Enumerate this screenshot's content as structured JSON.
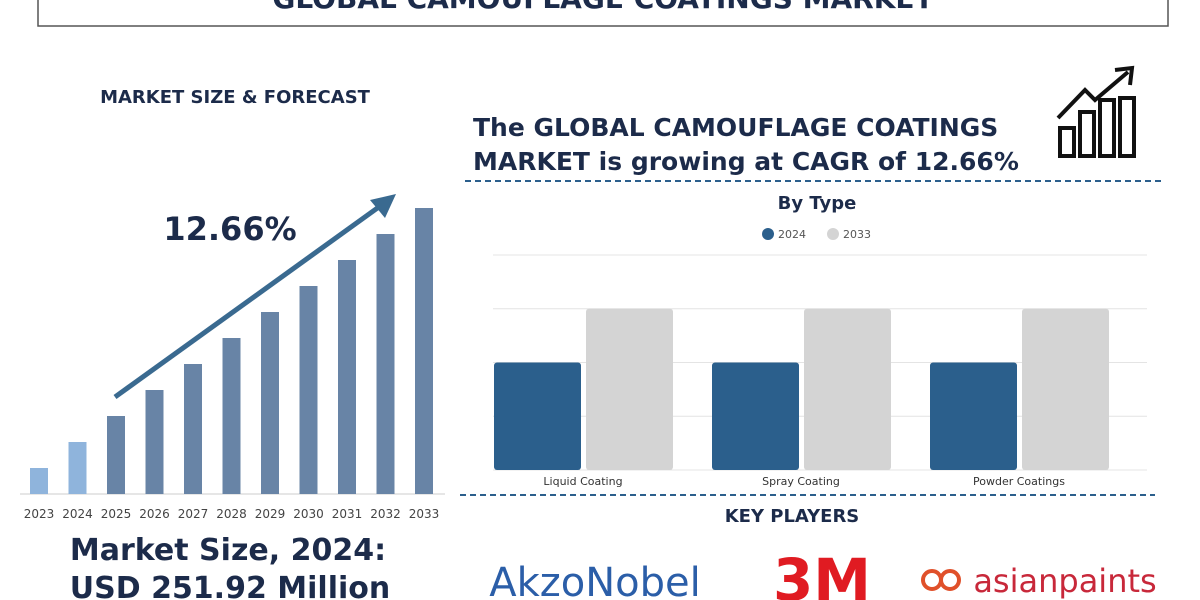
{
  "title": "GLOBAL CAMOUFLAGE COATINGS MARKET",
  "headline": [
    "The GLOBAL CAMOUFLAGE COATINGS",
    "MARKET is growing at CAGR of 12.66%"
  ],
  "chart_data": [
    {
      "type": "bar",
      "title": "MARKET SIZE & FORECAST",
      "annotation": "12.66%",
      "categories": [
        "2023",
        "2024",
        "2025",
        "2026",
        "2027",
        "2028",
        "2029",
        "2030",
        "2031",
        "2032",
        "2033"
      ],
      "values": [
        1,
        2,
        3,
        4,
        5,
        6,
        7,
        8,
        9,
        10,
        11
      ],
      "colors": [
        "#8fb4dc",
        "#8fb4dc",
        "#6884a6",
        "#6884a6",
        "#6884a6",
        "#6884a6",
        "#6884a6",
        "#6884a6",
        "#6884a6",
        "#6884a6",
        "#6884a6"
      ],
      "ylim": [
        0,
        12
      ]
    },
    {
      "type": "grouped-bar",
      "title": "By Type",
      "categories": [
        "Liquid Coating",
        "Spray Coating",
        "Powder Coatings"
      ],
      "series": [
        {
          "name": "2024",
          "color": "#2b5f8c",
          "values": [
            2,
            2,
            2
          ]
        },
        {
          "name": "2033",
          "color": "#d4d4d4",
          "values": [
            3,
            3,
            3
          ]
        }
      ],
      "ylim": [
        0,
        4
      ],
      "yticks": [
        0,
        1,
        2,
        3,
        4
      ],
      "grid": true
    }
  ],
  "market_size": [
    "Market Size, 2024:",
    "USD 251.92 Million"
  ],
  "key_players": {
    "title": "KEY PLAYERS",
    "names": [
      "AkzoNobel",
      "3M",
      "asianpaints"
    ]
  }
}
